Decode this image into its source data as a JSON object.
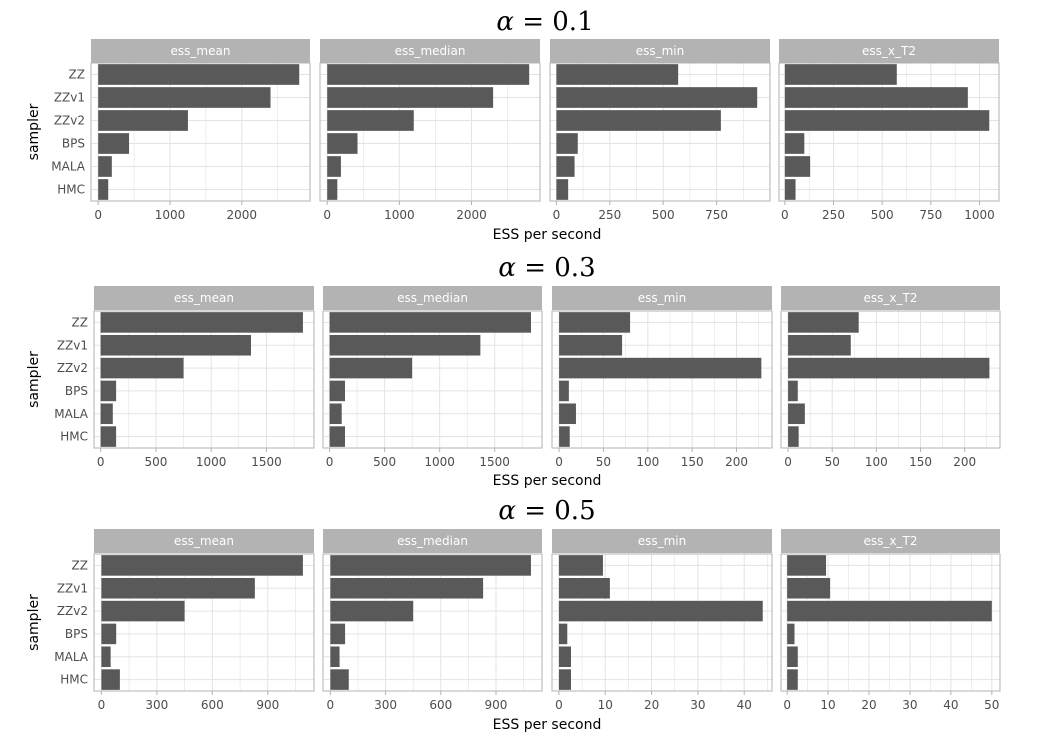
{
  "colors": {
    "bar": "#595959",
    "strip": "#b3b3b3",
    "panel_border": "#b3b3b3",
    "grid": "#e3e3e3",
    "tick_text": "#4d4d4d",
    "strip_text": "#ffffff"
  },
  "chart_data": [
    {
      "type": "bar",
      "orientation": "horizontal",
      "title_symbol": "α",
      "title_equals": " = ",
      "title_value": "0.1",
      "ylabel": "sampler",
      "xlabel": "ESS per second",
      "categories": [
        "ZZ",
        "ZZv1",
        "ZZv2",
        "BPS",
        "MALA",
        "HMC"
      ],
      "panels": [
        {
          "name": "ess_mean",
          "xlim": [
            -100,
            2950
          ],
          "ticks": [
            0,
            1000,
            2000
          ],
          "values": [
            2800,
            2400,
            1250,
            430,
            190,
            140
          ]
        },
        {
          "name": "ess_median",
          "xlim": [
            -100,
            2950
          ],
          "ticks": [
            0,
            1000,
            2000
          ],
          "values": [
            2800,
            2300,
            1200,
            420,
            190,
            140
          ]
        },
        {
          "name": "ess_min",
          "xlim": [
            -30,
            1000
          ],
          "ticks": [
            0,
            250,
            500,
            750
          ],
          "values": [
            570,
            940,
            770,
            100,
            85,
            55
          ]
        },
        {
          "name": "ess_x_T2",
          "xlim": [
            -30,
            1100
          ],
          "ticks": [
            0,
            250,
            500,
            750,
            1000
          ],
          "values": [
            575,
            940,
            1050,
            100,
            130,
            55
          ]
        }
      ]
    },
    {
      "type": "bar",
      "orientation": "horizontal",
      "title_symbol": "α",
      "title_equals": " = ",
      "title_value": "0.3",
      "ylabel": "sampler",
      "xlabel": "ESS per second",
      "categories": [
        "ZZ",
        "ZZv1",
        "ZZv2",
        "BPS",
        "MALA",
        "HMC"
      ],
      "panels": [
        {
          "name": "ess_mean",
          "xlim": [
            -60,
            1930
          ],
          "ticks": [
            0,
            500,
            1000,
            1500
          ],
          "values": [
            1830,
            1360,
            750,
            140,
            110,
            140
          ]
        },
        {
          "name": "ess_median",
          "xlim": [
            -60,
            1930
          ],
          "ticks": [
            0,
            500,
            1000,
            1500
          ],
          "values": [
            1830,
            1370,
            750,
            140,
            110,
            140
          ]
        },
        {
          "name": "ess_min",
          "xlim": [
            -8,
            240
          ],
          "ticks": [
            0,
            50,
            100,
            150,
            200
          ],
          "values": [
            80,
            71,
            228,
            11,
            19,
            12
          ]
        },
        {
          "name": "ess_x_T2",
          "xlim": [
            -8,
            240
          ],
          "ticks": [
            0,
            50,
            100,
            150,
            200
          ],
          "values": [
            80,
            71,
            228,
            11,
            19,
            12
          ]
        }
      ]
    },
    {
      "type": "bar",
      "orientation": "horizontal",
      "title_symbol": "α",
      "title_equals": " = ",
      "title_value": "0.5",
      "ylabel": "sampler",
      "xlabel": "ESS per second",
      "categories": [
        "ZZ",
        "ZZv1",
        "ZZv2",
        "BPS",
        "MALA",
        "HMC"
      ],
      "panels": [
        {
          "name": "ess_mean",
          "xlim": [
            -40,
            1150
          ],
          "ticks": [
            0,
            300,
            600,
            900
          ],
          "values": [
            1090,
            830,
            450,
            80,
            50,
            100
          ]
        },
        {
          "name": "ess_median",
          "xlim": [
            -40,
            1150
          ],
          "ticks": [
            0,
            300,
            600,
            900
          ],
          "values": [
            1090,
            830,
            450,
            80,
            50,
            100
          ]
        },
        {
          "name": "ess_min",
          "xlim": [
            -1.5,
            46
          ],
          "ticks": [
            0,
            10,
            20,
            30,
            40
          ],
          "values": [
            9.5,
            11,
            44,
            1.8,
            2.6,
            2.6
          ]
        },
        {
          "name": "ess_x_T2",
          "xlim": [
            -1.5,
            52
          ],
          "ticks": [
            0,
            10,
            20,
            30,
            40,
            50
          ],
          "values": [
            9.5,
            10.5,
            50,
            1.8,
            2.6,
            2.6
          ]
        }
      ]
    }
  ]
}
